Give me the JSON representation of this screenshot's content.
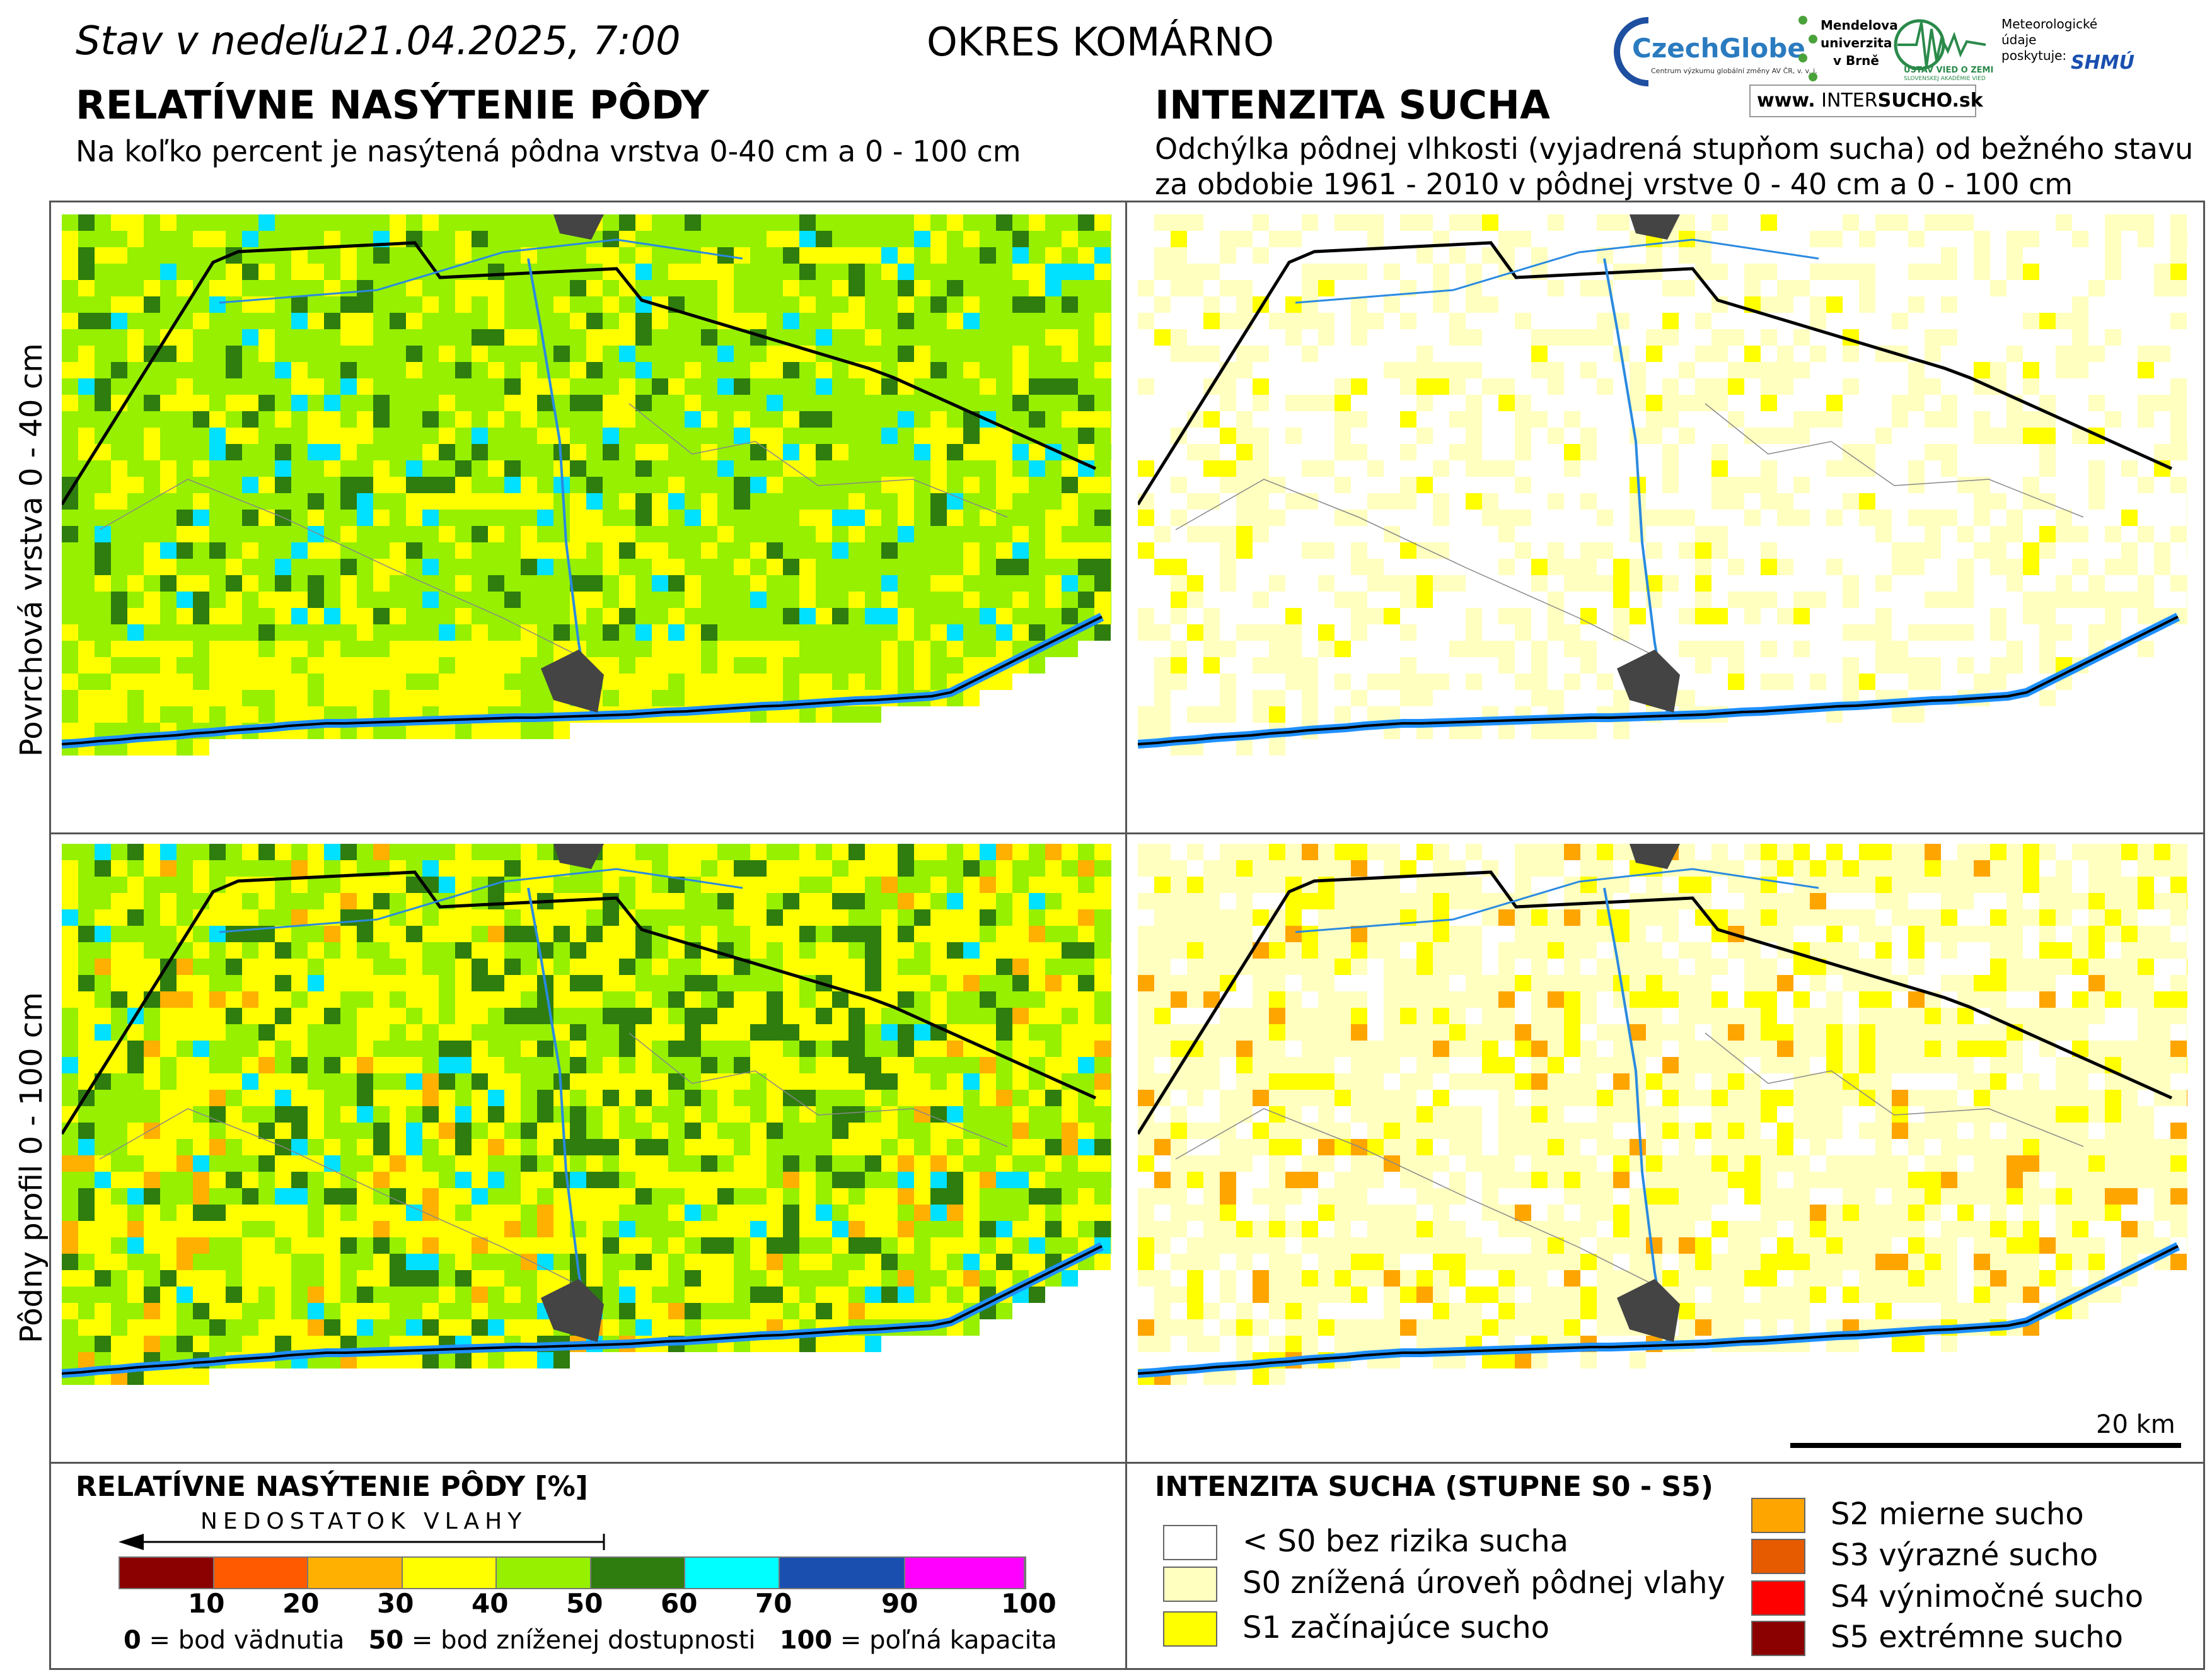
{
  "header": {
    "date_line": "Stav v nedeľu21.04.2025, 7:00",
    "district": "OKRES  KOMÁRNO"
  },
  "left_panel": {
    "title": "RELATÍVNE NASÝTENIE PÔDY",
    "subtitle": "Na koľko percent je nasýtená pôdna vrstva 0-40 cm a 0 - 100 cm"
  },
  "right_panel": {
    "title": "INTENZITA SUCHA",
    "subtitle_line1": "Odchýlka pôdnej vlhkosti (vyjadrená stupňom sucha) od bežného stavu",
    "subtitle_line2": "za obdobie 1961 - 2010 v pôdnej vrstve 0 - 40 cm a 0 - 100 cm"
  },
  "row_labels": {
    "top": "Povrchová vrstva 0 - 40 cm",
    "bottom": "Pôdny profil 0 - 100 cm"
  },
  "scale_bar": {
    "label": "20 km"
  },
  "logos": {
    "czechglobe": "CzechGlobe",
    "czechglobe_sub": "Centrum výzkumu globální změny AV ČR, v. v. i.",
    "mendel_line1": "Mendelova",
    "mendel_line2": "univerzita",
    "mendel_line3": "v Brně",
    "ustav": "ÚSTAV VIED O ZEMI",
    "ustav_sub": "SLOVENSKEJ AKADÉMIE VIED",
    "meteo_line1": "Meteorologické",
    "meteo_line2": "údaje",
    "meteo_line3": "poskytuje:",
    "shmu": "SHMÚ",
    "intersucho_prefix": "www.",
    "intersucho_a": "INTER",
    "intersucho_b": "SUCHO",
    "intersucho_c": ".sk"
  },
  "saturation_legend": {
    "title": "RELATÍVNE NASÝTENIE PÔDY [%]",
    "arrow_label": "NEDOSTATOK VLAHY",
    "colors": [
      "#8b0000",
      "#ff5a00",
      "#ffb000",
      "#ffff00",
      "#96f000",
      "#2e7d0e",
      "#00ffff",
      "#1a4fb0",
      "#ff00ff"
    ],
    "ticks": [
      "10",
      "20",
      "30",
      "40",
      "50",
      "60",
      "70",
      "90",
      "100"
    ],
    "note_0_bold": "0",
    "note_0": " = bod vädnutia",
    "note_50_bold": "50",
    "note_50": " = bod zníženej dostupnosti",
    "note_100_bold": "100",
    "note_100": " = poľná kapacita"
  },
  "drought_legend": {
    "title": "INTENZITA SUCHA (STUPNE S0 - S5)",
    "items": [
      {
        "label": "< S0 bez rizika sucha",
        "color": "#ffffff"
      },
      {
        "label": "S0 znížená úroveň pôdnej vlahy",
        "color": "#ffffc0"
      },
      {
        "label": "S1 začínajúce sucho",
        "color": "#ffff00"
      },
      {
        "label": "S2 mierne sucho",
        "color": "#ffa500"
      },
      {
        "label": "S3 výrazné sucho",
        "color": "#e65a00"
      },
      {
        "label": "S4 výnimočné sucho",
        "color": "#ff0000"
      },
      {
        "label": "S5 extrémne sucho",
        "color": "#8b0000"
      }
    ]
  }
}
